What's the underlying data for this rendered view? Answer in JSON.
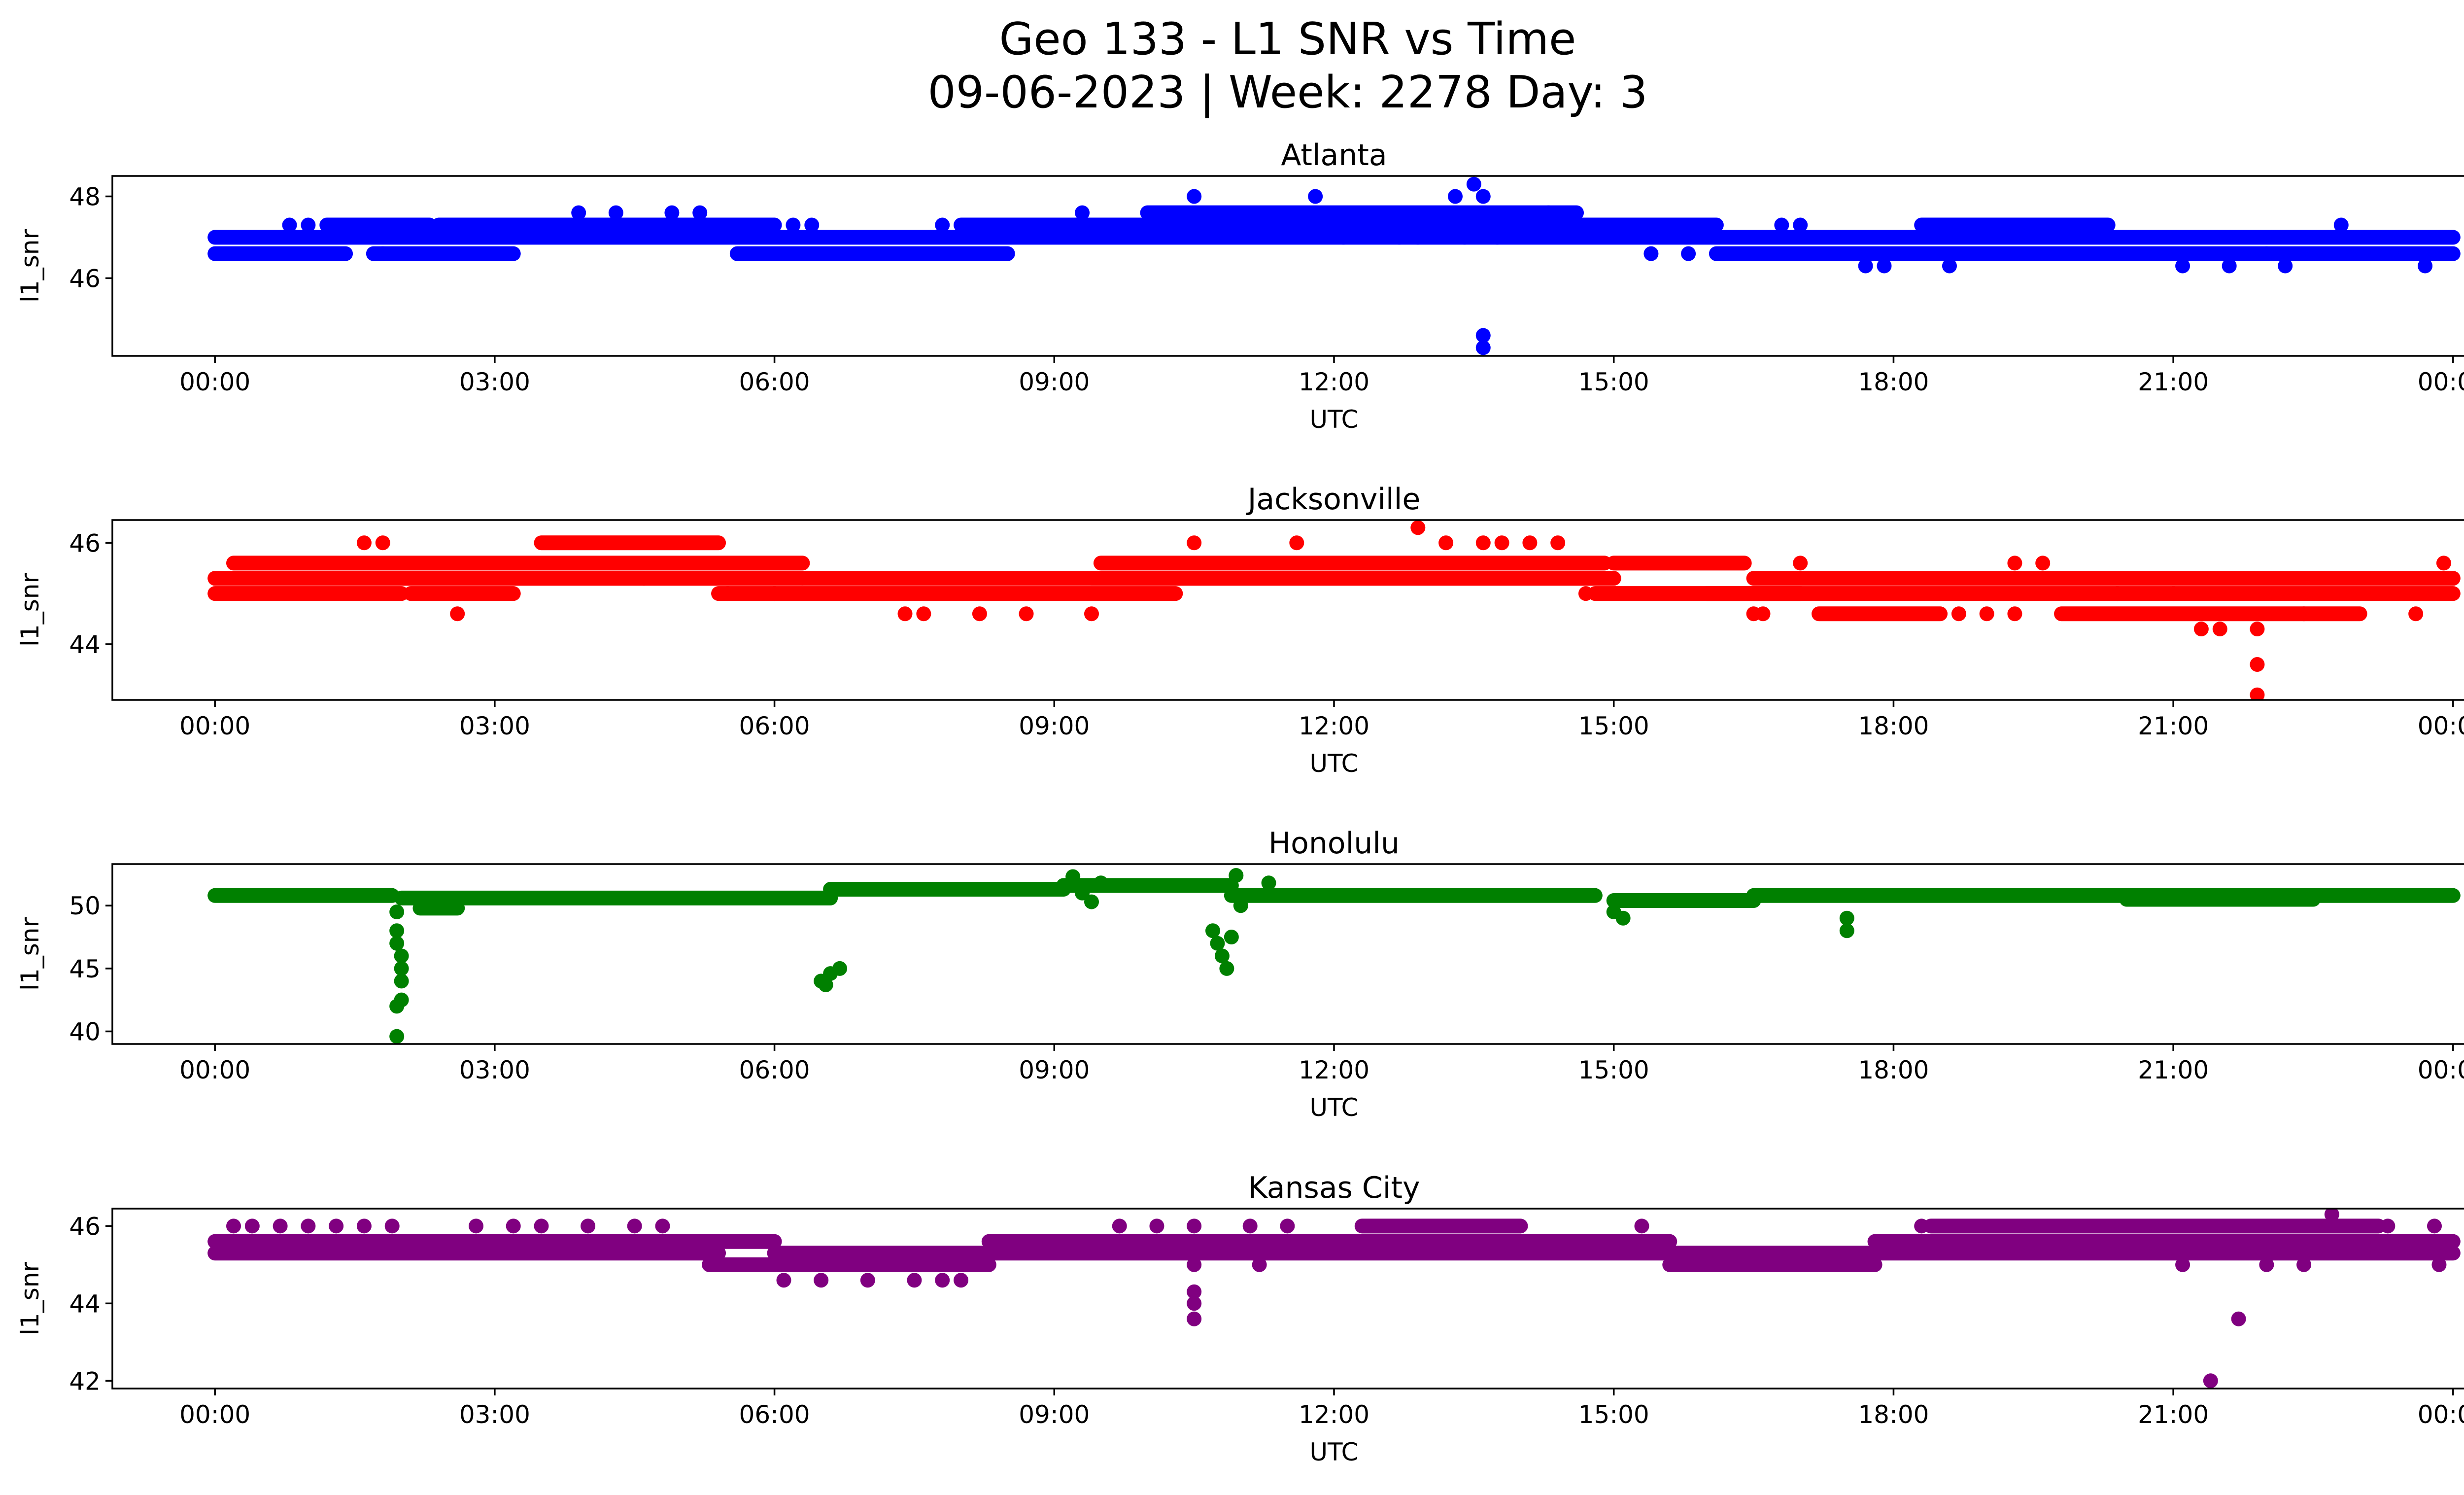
{
  "figure": {
    "title_line1": "Geo 133 - L1 SNR vs Time",
    "title_line2": "09-06-2023 | Week: 2278 Day: 3"
  },
  "chart_data": [
    {
      "type": "scatter",
      "title": "Atlanta",
      "xlabel": "UTC",
      "ylabel": "l1_snr",
      "color": "#0000ff",
      "xlim_hours": [
        -1.1,
        25.1
      ],
      "ylim": [
        44.1,
        48.5
      ],
      "yticks": [
        46,
        48
      ],
      "ytick_labels": [
        "46",
        "48"
      ],
      "xticks_hours": [
        0,
        3,
        6,
        9,
        12,
        15,
        18,
        21,
        24
      ],
      "xtick_labels": [
        "00:00",
        "03:00",
        "06:00",
        "09:00",
        "12:00",
        "15:00",
        "18:00",
        "21:00",
        "00:00"
      ],
      "bands": [
        {
          "from": 0.0,
          "to": 24.0,
          "y": 47.0
        },
        {
          "from": 0.0,
          "to": 1.4,
          "y": 46.6
        },
        {
          "from": 1.7,
          "to": 3.2,
          "y": 46.6
        },
        {
          "from": 5.6,
          "to": 8.5,
          "y": 46.6
        },
        {
          "from": 16.1,
          "to": 22.0,
          "y": 46.6
        },
        {
          "from": 22.0,
          "to": 24.0,
          "y": 46.6
        },
        {
          "from": 1.2,
          "to": 2.3,
          "y": 47.3
        },
        {
          "from": 2.4,
          "to": 6.0,
          "y": 47.3
        },
        {
          "from": 8.0,
          "to": 16.1,
          "y": 47.3
        },
        {
          "from": 10.0,
          "to": 14.6,
          "y": 47.6
        },
        {
          "from": 18.3,
          "to": 20.3,
          "y": 47.3
        }
      ],
      "points": [
        [
          0.8,
          47.3
        ],
        [
          1.0,
          47.3
        ],
        [
          1.8,
          46.6
        ],
        [
          2.9,
          47.3
        ],
        [
          3.9,
          47.6
        ],
        [
          4.3,
          47.6
        ],
        [
          4.9,
          47.6
        ],
        [
          5.2,
          47.6
        ],
        [
          6.2,
          47.3
        ],
        [
          6.4,
          47.3
        ],
        [
          7.8,
          47.3
        ],
        [
          9.3,
          47.6
        ],
        [
          10.5,
          48.0
        ],
        [
          11.8,
          48.0
        ],
        [
          12.1,
          47.0
        ],
        [
          12.7,
          47.0
        ],
        [
          12.9,
          47.0
        ],
        [
          13.3,
          48.0
        ],
        [
          13.5,
          48.3
        ],
        [
          13.6,
          48.0
        ],
        [
          13.4,
          47.0
        ],
        [
          13.75,
          47.0
        ],
        [
          13.6,
          44.6
        ],
        [
          13.6,
          44.3
        ],
        [
          14.3,
          47.6
        ],
        [
          14.6,
          47.3
        ],
        [
          15.4,
          46.6
        ],
        [
          15.8,
          46.6
        ],
        [
          16.8,
          47.3
        ],
        [
          17.0,
          47.3
        ],
        [
          17.7,
          46.3
        ],
        [
          17.9,
          46.3
        ],
        [
          18.6,
          46.3
        ],
        [
          20.2,
          47.3
        ],
        [
          21.1,
          46.3
        ],
        [
          21.6,
          46.3
        ],
        [
          22.2,
          46.3
        ],
        [
          22.8,
          47.3
        ],
        [
          23.7,
          46.3
        ]
      ]
    },
    {
      "type": "scatter",
      "title": "Jacksonville",
      "xlabel": "UTC",
      "ylabel": "l1_snr",
      "color": "#ff0000",
      "xlim_hours": [
        -1.1,
        25.1
      ],
      "ylim": [
        42.9,
        46.45
      ],
      "yticks": [
        44,
        46
      ],
      "ytick_labels": [
        "44",
        "46"
      ],
      "xticks_hours": [
        0,
        3,
        6,
        9,
        12,
        15,
        18,
        21,
        24
      ],
      "xtick_labels": [
        "00:00",
        "03:00",
        "06:00",
        "09:00",
        "12:00",
        "15:00",
        "18:00",
        "21:00",
        "00:00"
      ],
      "bands": [
        {
          "from": 0.0,
          "to": 6.3,
          "y": 45.3
        },
        {
          "from": 0.0,
          "to": 2.0,
          "y": 45.0
        },
        {
          "from": 2.1,
          "to": 3.2,
          "y": 45.0
        },
        {
          "from": 0.2,
          "to": 6.3,
          "y": 45.6
        },
        {
          "from": 3.5,
          "to": 5.4,
          "y": 46.0
        },
        {
          "from": 5.4,
          "to": 10.3,
          "y": 45.0
        },
        {
          "from": 6.3,
          "to": 10.3,
          "y": 45.3
        },
        {
          "from": 9.4,
          "to": 15.0,
          "y": 45.3
        },
        {
          "from": 9.5,
          "to": 14.9,
          "y": 45.6
        },
        {
          "from": 14.8,
          "to": 17.0,
          "y": 45.0
        },
        {
          "from": 15.0,
          "to": 16.4,
          "y": 45.6
        },
        {
          "from": 16.0,
          "to": 24.0,
          "y": 45.0
        },
        {
          "from": 16.5,
          "to": 24.0,
          "y": 45.3
        },
        {
          "from": 17.2,
          "to": 18.5,
          "y": 44.6
        },
        {
          "from": 19.8,
          "to": 23.0,
          "y": 44.6
        }
      ],
      "points": [
        [
          1.6,
          46.0
        ],
        [
          1.8,
          46.0
        ],
        [
          2.6,
          44.6
        ],
        [
          4.6,
          45.3
        ],
        [
          5.5,
          45.0
        ],
        [
          6.0,
          45.0
        ],
        [
          7.4,
          44.6
        ],
        [
          7.6,
          44.6
        ],
        [
          8.2,
          44.6
        ],
        [
          8.7,
          44.6
        ],
        [
          9.4,
          44.6
        ],
        [
          10.5,
          46.0
        ],
        [
          11.6,
          46.0
        ],
        [
          12.9,
          46.3
        ],
        [
          13.2,
          46.0
        ],
        [
          13.6,
          46.0
        ],
        [
          13.8,
          46.0
        ],
        [
          14.1,
          46.0
        ],
        [
          14.4,
          46.0
        ],
        [
          14.7,
          45.0
        ],
        [
          16.5,
          44.6
        ],
        [
          16.6,
          44.6
        ],
        [
          17.0,
          45.6
        ],
        [
          18.7,
          44.6
        ],
        [
          19.0,
          44.6
        ],
        [
          19.3,
          44.6
        ],
        [
          19.3,
          45.6
        ],
        [
          19.6,
          45.6
        ],
        [
          20.4,
          45.0
        ],
        [
          21.0,
          45.0
        ],
        [
          21.3,
          44.3
        ],
        [
          21.5,
          44.3
        ],
        [
          21.9,
          44.3
        ],
        [
          21.9,
          43.6
        ],
        [
          21.9,
          43.0
        ],
        [
          22.4,
          44.6
        ],
        [
          23.6,
          44.6
        ],
        [
          23.9,
          45.6
        ]
      ]
    },
    {
      "type": "scatter",
      "title": "Honolulu",
      "xlabel": "UTC",
      "ylabel": "l1_snr",
      "color": "#008000",
      "xlim_hours": [
        -1.1,
        25.1
      ],
      "ylim": [
        39.0,
        53.3
      ],
      "yticks": [
        40,
        45,
        50
      ],
      "ytick_labels": [
        "40",
        "45",
        "50"
      ],
      "xticks_hours": [
        0,
        3,
        6,
        9,
        12,
        15,
        18,
        21,
        24
      ],
      "xtick_labels": [
        "00:00",
        "03:00",
        "06:00",
        "09:00",
        "12:00",
        "15:00",
        "18:00",
        "21:00",
        "00:00"
      ],
      "bands": [
        {
          "from": 0.0,
          "to": 1.9,
          "y": 50.8
        },
        {
          "from": 2.0,
          "to": 6.6,
          "y": 50.6
        },
        {
          "from": 2.2,
          "to": 2.6,
          "y": 49.8
        },
        {
          "from": 6.6,
          "to": 9.1,
          "y": 51.3
        },
        {
          "from": 9.1,
          "to": 10.9,
          "y": 51.6
        },
        {
          "from": 10.9,
          "to": 14.8,
          "y": 50.8
        },
        {
          "from": 15.0,
          "to": 16.5,
          "y": 50.4
        },
        {
          "from": 16.5,
          "to": 24.0,
          "y": 50.8
        },
        {
          "from": 20.5,
          "to": 22.5,
          "y": 50.5
        }
      ],
      "points": [
        [
          1.95,
          49.5
        ],
        [
          1.95,
          48.0
        ],
        [
          1.95,
          47.0
        ],
        [
          2.0,
          46.0
        ],
        [
          2.0,
          45.0
        ],
        [
          2.0,
          44.0
        ],
        [
          2.0,
          42.5
        ],
        [
          1.95,
          42.0
        ],
        [
          1.95,
          39.6
        ],
        [
          6.5,
          44.0
        ],
        [
          6.55,
          43.7
        ],
        [
          6.6,
          44.6
        ],
        [
          6.7,
          45.0
        ],
        [
          9.2,
          52.3
        ],
        [
          9.3,
          51.0
        ],
        [
          9.4,
          50.3
        ],
        [
          9.5,
          51.8
        ],
        [
          10.7,
          48.0
        ],
        [
          10.75,
          47.0
        ],
        [
          10.8,
          46.0
        ],
        [
          10.85,
          45.0
        ],
        [
          10.9,
          47.5
        ],
        [
          10.95,
          52.4
        ],
        [
          11.0,
          50.0
        ],
        [
          11.3,
          51.8
        ],
        [
          15.0,
          49.5
        ],
        [
          15.1,
          49.0
        ],
        [
          17.5,
          49.0
        ],
        [
          17.5,
          48.0
        ]
      ]
    },
    {
      "type": "scatter",
      "title": "Kansas City",
      "xlabel": "UTC",
      "ylabel": "l1_snr",
      "color": "#800080",
      "xlim_hours": [
        -1.1,
        25.1
      ],
      "ylim": [
        41.8,
        46.45
      ],
      "yticks": [
        42,
        44,
        46
      ],
      "ytick_labels": [
        "42",
        "44",
        "46"
      ],
      "xticks_hours": [
        0,
        3,
        6,
        9,
        12,
        15,
        18,
        21,
        24
      ],
      "xtick_labels": [
        "00:00",
        "03:00",
        "06:00",
        "09:00",
        "12:00",
        "15:00",
        "18:00",
        "21:00",
        "00:00"
      ],
      "bands": [
        {
          "from": 0.0,
          "to": 5.4,
          "y": 45.3
        },
        {
          "from": 0.0,
          "to": 6.0,
          "y": 45.6
        },
        {
          "from": 5.3,
          "to": 8.3,
          "y": 45.0
        },
        {
          "from": 6.0,
          "to": 8.3,
          "y": 45.3
        },
        {
          "from": 8.3,
          "to": 15.6,
          "y": 45.6
        },
        {
          "from": 8.3,
          "to": 15.6,
          "y": 45.3
        },
        {
          "from": 12.3,
          "to": 14.0,
          "y": 46.0
        },
        {
          "from": 15.6,
          "to": 17.8,
          "y": 45.0
        },
        {
          "from": 15.6,
          "to": 24.0,
          "y": 45.3
        },
        {
          "from": 17.8,
          "to": 24.0,
          "y": 45.6
        },
        {
          "from": 18.4,
          "to": 23.2,
          "y": 46.0
        }
      ],
      "points": [
        [
          0.2,
          46.0
        ],
        [
          0.4,
          46.0
        ],
        [
          0.7,
          46.0
        ],
        [
          1.0,
          46.0
        ],
        [
          1.3,
          46.0
        ],
        [
          1.6,
          46.0
        ],
        [
          1.9,
          46.0
        ],
        [
          2.8,
          46.0
        ],
        [
          3.2,
          46.0
        ],
        [
          3.5,
          46.0
        ],
        [
          4.0,
          46.0
        ],
        [
          4.5,
          46.0
        ],
        [
          4.8,
          46.0
        ],
        [
          6.1,
          44.6
        ],
        [
          6.5,
          44.6
        ],
        [
          7.0,
          44.6
        ],
        [
          7.5,
          44.6
        ],
        [
          7.8,
          44.6
        ],
        [
          8.0,
          44.6
        ],
        [
          9.7,
          46.0
        ],
        [
          10.1,
          46.0
        ],
        [
          10.5,
          46.0
        ],
        [
          10.5,
          45.0
        ],
        [
          10.5,
          44.3
        ],
        [
          10.5,
          44.0
        ],
        [
          10.5,
          43.6
        ],
        [
          11.1,
          46.0
        ],
        [
          11.5,
          46.0
        ],
        [
          11.2,
          45.0
        ],
        [
          15.3,
          46.0
        ],
        [
          18.3,
          46.0
        ],
        [
          21.1,
          45.0
        ],
        [
          21.4,
          42.0
        ],
        [
          21.7,
          43.6
        ],
        [
          22.0,
          45.0
        ],
        [
          22.4,
          45.0
        ],
        [
          22.7,
          46.3
        ],
        [
          23.3,
          46.0
        ],
        [
          23.8,
          46.0
        ],
        [
          23.85,
          45.0
        ]
      ]
    }
  ]
}
